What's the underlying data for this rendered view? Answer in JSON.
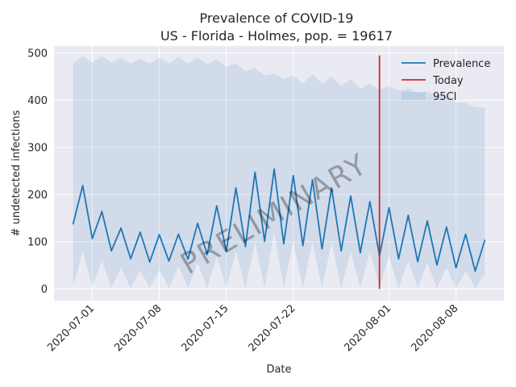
{
  "chart_data": {
    "type": "line",
    "title": "Prevalence of COVID-19",
    "subtitle": "US - Florida - Holmes, pop. = 19617",
    "xlabel": "Date",
    "ylabel": "# undetected infections",
    "xlim": [
      "2020-06-27",
      "2020-08-13"
    ],
    "ylim": [
      -25,
      515
    ],
    "y_ticks": [
      0,
      100,
      200,
      300,
      400,
      500
    ],
    "x_ticks": [
      "2020-07-01",
      "2020-07-08",
      "2020-07-15",
      "2020-07-22",
      "2020-08-01",
      "2020-08-08"
    ],
    "grid": true,
    "legend_position": "top-right",
    "watermark": "PRELIMINARY",
    "x": [
      "2020-06-29",
      "2020-06-30",
      "2020-07-01",
      "2020-07-02",
      "2020-07-03",
      "2020-07-04",
      "2020-07-05",
      "2020-07-06",
      "2020-07-07",
      "2020-07-08",
      "2020-07-09",
      "2020-07-10",
      "2020-07-11",
      "2020-07-12",
      "2020-07-13",
      "2020-07-14",
      "2020-07-15",
      "2020-07-16",
      "2020-07-17",
      "2020-07-18",
      "2020-07-19",
      "2020-07-20",
      "2020-07-21",
      "2020-07-22",
      "2020-07-23",
      "2020-07-24",
      "2020-07-25",
      "2020-07-26",
      "2020-07-27",
      "2020-07-28",
      "2020-07-29",
      "2020-07-30",
      "2020-07-31",
      "2020-08-01",
      "2020-08-02",
      "2020-08-03",
      "2020-08-04",
      "2020-08-05",
      "2020-08-06",
      "2020-08-07",
      "2020-08-08",
      "2020-08-09",
      "2020-08-10",
      "2020-08-11"
    ],
    "series": [
      {
        "name": "Prevalence",
        "color": "#1f77b4",
        "values": [
          138,
          219,
          107,
          164,
          81,
          129,
          64,
          120,
          57,
          115,
          59,
          116,
          63,
          139,
          73,
          176,
          80,
          214,
          90,
          247,
          101,
          254,
          96,
          240,
          92,
          231,
          85,
          214,
          81,
          197,
          77,
          185,
          70,
          172,
          64,
          156,
          58,
          144,
          51,
          131,
          45,
          116,
          38,
          103
        ]
      },
      {
        "name": "95CI",
        "color": "#1f77b4",
        "lower": [
          5,
          80,
          5,
          60,
          2,
          45,
          2,
          40,
          2,
          40,
          2,
          48,
          2,
          56,
          2,
          70,
          2,
          80,
          2,
          100,
          2,
          120,
          2,
          100,
          2,
          100,
          2,
          100,
          2,
          80,
          2,
          80,
          2,
          70,
          2,
          60,
          2,
          55,
          2,
          45,
          2,
          38,
          2,
          30
        ],
        "upper": [
          478,
          493,
          480,
          493,
          480,
          490,
          478,
          488,
          478,
          490,
          478,
          492,
          478,
          490,
          476,
          486,
          470,
          478,
          462,
          468,
          452,
          456,
          445,
          452,
          436,
          455,
          435,
          450,
          430,
          445,
          425,
          435,
          422,
          430,
          420,
          425,
          415,
          418,
          410,
          412,
          395,
          395,
          385,
          385
        ]
      }
    ],
    "today": {
      "name": "Today",
      "date": "2020-07-31",
      "y_range": [
        0,
        495
      ],
      "color": "#d62728"
    }
  }
}
